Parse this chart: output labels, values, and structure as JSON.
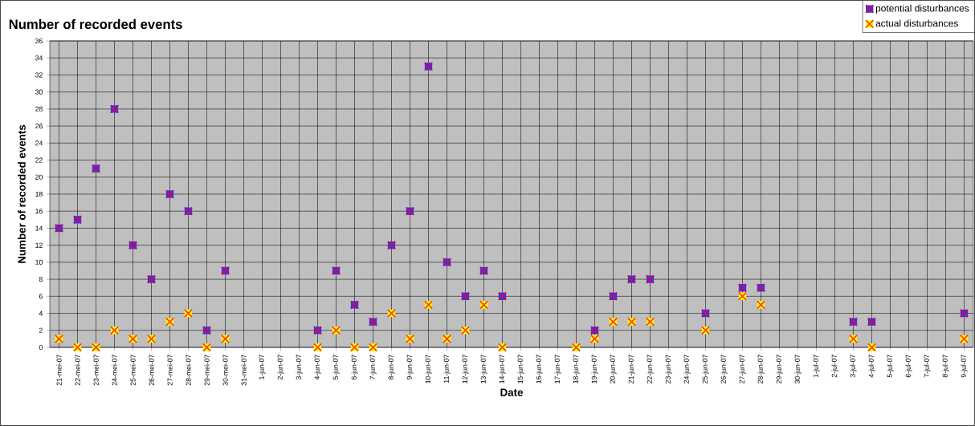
{
  "chart_data": {
    "type": "scatter",
    "title": "Number of recorded events",
    "xlabel": "Date",
    "ylabel": "Number of recorded events",
    "categories": [
      "21-mei-07",
      "22-mei-07",
      "23-mei-07",
      "24-mei-07",
      "25-mei-07",
      "26-mei-07",
      "27-mei-07",
      "28-mei-07",
      "29-mei-07",
      "30-mei-07",
      "31-mei-07",
      "1-jun-07",
      "2-jun-07",
      "3-jun-07",
      "4-jun-07",
      "5-jun-07",
      "6-jun-07",
      "7-jun-07",
      "8-jun-07",
      "9-jun-07",
      "10-jun-07",
      "11-jun-07",
      "12-jun-07",
      "13-jun-07",
      "14-jun-07",
      "15-jun-07",
      "16-jun-07",
      "17-jun-07",
      "18-jun-07",
      "19-jun-07",
      "20-jun-07",
      "21-jun-07",
      "22-jun-07",
      "23-jun-07",
      "24-jun-07",
      "25-jun-07",
      "26-jun-07",
      "27-jun-07",
      "28-jun-07",
      "29-jun-07",
      "30-jun-07",
      "1-jul-07",
      "2-jul-07",
      "3-jul-07",
      "4-jul-07",
      "5-jul-07",
      "6-jul-07",
      "7-jul-07",
      "8-jul-07",
      "9-jul-07"
    ],
    "series": [
      {
        "name": "potential  disturbances",
        "color": "#3333ff",
        "values": [
          14,
          15,
          21,
          28,
          12,
          8,
          18,
          16,
          2,
          9,
          null,
          null,
          null,
          null,
          2,
          9,
          5,
          3,
          12,
          16,
          33,
          10,
          6,
          9,
          6,
          null,
          null,
          null,
          null,
          2,
          6,
          8,
          8,
          null,
          null,
          4,
          null,
          7,
          7,
          null,
          null,
          null,
          null,
          3,
          3,
          null,
          null,
          null,
          null,
          4
        ]
      },
      {
        "name": "actual disturbances",
        "color": "#ffff00",
        "values": [
          1,
          0,
          0,
          2,
          1,
          1,
          3,
          4,
          0,
          1,
          null,
          null,
          null,
          null,
          0,
          2,
          0,
          0,
          4,
          1,
          5,
          1,
          2,
          5,
          0,
          null,
          null,
          null,
          0,
          1,
          3,
          3,
          3,
          null,
          null,
          2,
          null,
          6,
          5,
          null,
          null,
          null,
          null,
          1,
          0,
          null,
          null,
          null,
          null,
          1
        ]
      }
    ],
    "ylim": [
      0,
      36
    ],
    "yticks": [
      0,
      2,
      4,
      6,
      8,
      10,
      12,
      14,
      16,
      18,
      20,
      22,
      24,
      26,
      28,
      30,
      32,
      34,
      36
    ],
    "grid": true,
    "legend": "top right",
    "marker": "square"
  }
}
